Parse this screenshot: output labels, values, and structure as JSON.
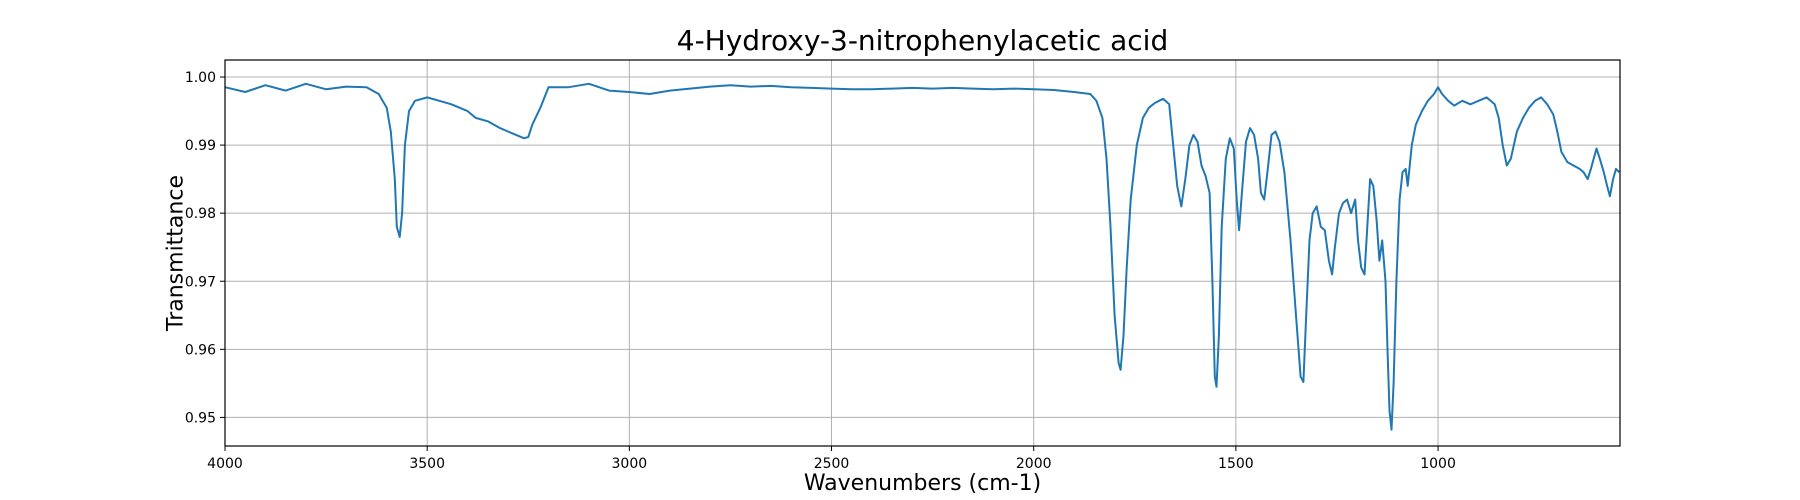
{
  "chart_data": {
    "type": "line",
    "title": "4-Hydroxy-3-nitrophenylacetic acid",
    "xlabel": "Wavenumbers (cm-1)",
    "ylabel": "Transmittance",
    "xlim": [
      4000,
      550
    ],
    "ylim": [
      0.9458,
      1.0025
    ],
    "x_ticks": [
      4000,
      3500,
      3000,
      2500,
      2000,
      1500,
      1000
    ],
    "x_tick_labels": [
      "4000",
      "3500",
      "3000",
      "2500",
      "2000",
      "1500",
      "1000"
    ],
    "y_ticks": [
      0.95,
      0.96,
      0.97,
      0.98,
      0.99,
      1.0
    ],
    "y_tick_labels": [
      "0.95",
      "0.96",
      "0.97",
      "0.98",
      "0.99",
      "1.00"
    ],
    "grid": true,
    "series": [
      {
        "color": "#1f77b4",
        "points": [
          [
            4000,
            0.9985
          ],
          [
            3950,
            0.9978
          ],
          [
            3900,
            0.9988
          ],
          [
            3850,
            0.998
          ],
          [
            3800,
            0.999
          ],
          [
            3750,
            0.9982
          ],
          [
            3700,
            0.9986
          ],
          [
            3650,
            0.9985
          ],
          [
            3620,
            0.9975
          ],
          [
            3600,
            0.9955
          ],
          [
            3590,
            0.992
          ],
          [
            3580,
            0.985
          ],
          [
            3575,
            0.978
          ],
          [
            3568,
            0.9765
          ],
          [
            3562,
            0.98
          ],
          [
            3555,
            0.99
          ],
          [
            3545,
            0.995
          ],
          [
            3530,
            0.9965
          ],
          [
            3500,
            0.997
          ],
          [
            3470,
            0.9965
          ],
          [
            3440,
            0.996
          ],
          [
            3420,
            0.9955
          ],
          [
            3400,
            0.995
          ],
          [
            3380,
            0.994
          ],
          [
            3350,
            0.9935
          ],
          [
            3320,
            0.9925
          ],
          [
            3300,
            0.992
          ],
          [
            3280,
            0.9915
          ],
          [
            3260,
            0.991
          ],
          [
            3250,
            0.9912
          ],
          [
            3240,
            0.993
          ],
          [
            3220,
            0.9955
          ],
          [
            3200,
            0.9985
          ],
          [
            3150,
            0.9985
          ],
          [
            3100,
            0.999
          ],
          [
            3050,
            0.998
          ],
          [
            3000,
            0.9978
          ],
          [
            2950,
            0.9975
          ],
          [
            2900,
            0.998
          ],
          [
            2850,
            0.9983
          ],
          [
            2800,
            0.9986
          ],
          [
            2750,
            0.9988
          ],
          [
            2700,
            0.9986
          ],
          [
            2650,
            0.9987
          ],
          [
            2600,
            0.9985
          ],
          [
            2550,
            0.9984
          ],
          [
            2500,
            0.9983
          ],
          [
            2450,
            0.9982
          ],
          [
            2400,
            0.9982
          ],
          [
            2350,
            0.9983
          ],
          [
            2300,
            0.9984
          ],
          [
            2250,
            0.9983
          ],
          [
            2200,
            0.9984
          ],
          [
            2150,
            0.9983
          ],
          [
            2100,
            0.9982
          ],
          [
            2050,
            0.9983
          ],
          [
            2000,
            0.9982
          ],
          [
            1950,
            0.9981
          ],
          [
            1900,
            0.9978
          ],
          [
            1860,
            0.9975
          ],
          [
            1845,
            0.9965
          ],
          [
            1830,
            0.994
          ],
          [
            1820,
            0.988
          ],
          [
            1810,
            0.978
          ],
          [
            1800,
            0.965
          ],
          [
            1790,
            0.958
          ],
          [
            1785,
            0.957
          ],
          [
            1778,
            0.962
          ],
          [
            1770,
            0.972
          ],
          [
            1760,
            0.982
          ],
          [
            1745,
            0.99
          ],
          [
            1730,
            0.994
          ],
          [
            1715,
            0.9955
          ],
          [
            1700,
            0.9962
          ],
          [
            1680,
            0.9968
          ],
          [
            1665,
            0.996
          ],
          [
            1655,
            0.99
          ],
          [
            1645,
            0.984
          ],
          [
            1635,
            0.981
          ],
          [
            1625,
            0.985
          ],
          [
            1615,
            0.99
          ],
          [
            1605,
            0.9915
          ],
          [
            1595,
            0.9905
          ],
          [
            1585,
            0.987
          ],
          [
            1575,
            0.9855
          ],
          [
            1565,
            0.983
          ],
          [
            1558,
            0.97
          ],
          [
            1552,
            0.956
          ],
          [
            1548,
            0.9545
          ],
          [
            1542,
            0.962
          ],
          [
            1535,
            0.978
          ],
          [
            1525,
            0.988
          ],
          [
            1515,
            0.991
          ],
          [
            1505,
            0.9895
          ],
          [
            1498,
            0.982
          ],
          [
            1492,
            0.9775
          ],
          [
            1485,
            0.983
          ],
          [
            1475,
            0.9905
          ],
          [
            1465,
            0.9925
          ],
          [
            1455,
            0.9915
          ],
          [
            1445,
            0.988
          ],
          [
            1438,
            0.983
          ],
          [
            1430,
            0.982
          ],
          [
            1422,
            0.986
          ],
          [
            1412,
            0.9915
          ],
          [
            1402,
            0.992
          ],
          [
            1392,
            0.9905
          ],
          [
            1380,
            0.986
          ],
          [
            1365,
            0.976
          ],
          [
            1350,
            0.964
          ],
          [
            1340,
            0.956
          ],
          [
            1333,
            0.9552
          ],
          [
            1326,
            0.965
          ],
          [
            1318,
            0.976
          ],
          [
            1310,
            0.98
          ],
          [
            1300,
            0.981
          ],
          [
            1290,
            0.978
          ],
          [
            1280,
            0.9775
          ],
          [
            1270,
            0.973
          ],
          [
            1262,
            0.971
          ],
          [
            1255,
            0.975
          ],
          [
            1245,
            0.98
          ],
          [
            1235,
            0.9815
          ],
          [
            1225,
            0.982
          ],
          [
            1215,
            0.98
          ],
          [
            1205,
            0.982
          ],
          [
            1198,
            0.976
          ],
          [
            1190,
            0.972
          ],
          [
            1182,
            0.971
          ],
          [
            1175,
            0.978
          ],
          [
            1168,
            0.985
          ],
          [
            1160,
            0.984
          ],
          [
            1152,
            0.979
          ],
          [
            1145,
            0.973
          ],
          [
            1138,
            0.976
          ],
          [
            1130,
            0.97
          ],
          [
            1125,
            0.96
          ],
          [
            1120,
            0.951
          ],
          [
            1115,
            0.9482
          ],
          [
            1110,
            0.955
          ],
          [
            1103,
            0.97
          ],
          [
            1095,
            0.982
          ],
          [
            1088,
            0.986
          ],
          [
            1080,
            0.9865
          ],
          [
            1075,
            0.984
          ],
          [
            1065,
            0.99
          ],
          [
            1055,
            0.993
          ],
          [
            1040,
            0.995
          ],
          [
            1025,
            0.9965
          ],
          [
            1010,
            0.9975
          ],
          [
            1000,
            0.9985
          ],
          [
            990,
            0.9975
          ],
          [
            975,
            0.9965
          ],
          [
            960,
            0.9958
          ],
          [
            940,
            0.9965
          ],
          [
            920,
            0.996
          ],
          [
            900,
            0.9965
          ],
          [
            880,
            0.997
          ],
          [
            860,
            0.996
          ],
          [
            850,
            0.994
          ],
          [
            840,
            0.99
          ],
          [
            830,
            0.987
          ],
          [
            820,
            0.988
          ],
          [
            805,
            0.992
          ],
          [
            790,
            0.994
          ],
          [
            775,
            0.9955
          ],
          [
            760,
            0.9965
          ],
          [
            745,
            0.997
          ],
          [
            730,
            0.996
          ],
          [
            715,
            0.9945
          ],
          [
            705,
            0.992
          ],
          [
            695,
            0.989
          ],
          [
            680,
            0.9875
          ],
          [
            665,
            0.987
          ],
          [
            650,
            0.9865
          ],
          [
            640,
            0.986
          ],
          [
            630,
            0.985
          ],
          [
            622,
            0.9865
          ],
          [
            615,
            0.988
          ],
          [
            608,
            0.9895
          ],
          [
            600,
            0.988
          ],
          [
            590,
            0.986
          ],
          [
            582,
            0.984
          ],
          [
            575,
            0.9825
          ],
          [
            567,
            0.985
          ],
          [
            560,
            0.9865
          ],
          [
            552,
            0.986
          ]
        ]
      }
    ]
  }
}
